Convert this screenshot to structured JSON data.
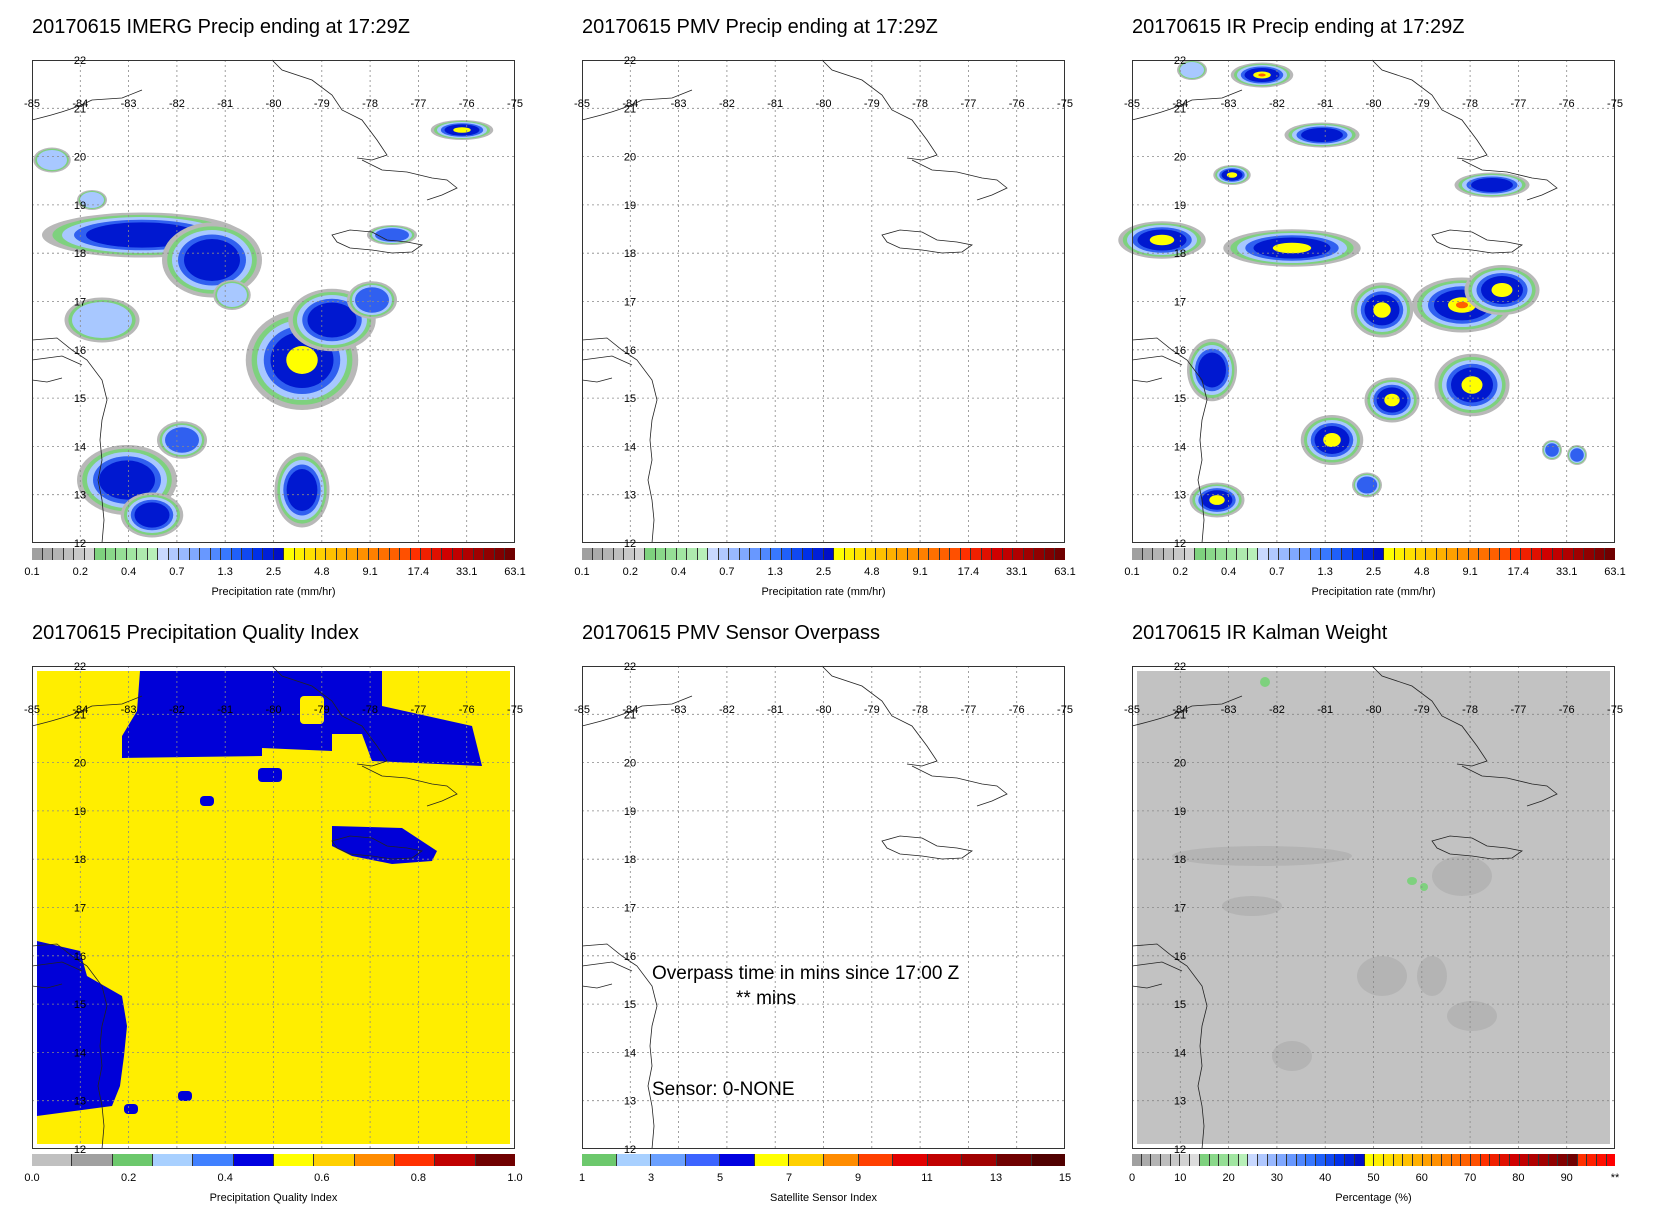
{
  "panels": [
    {
      "title": "20170615 IMERG Precip ending at 17:29Z",
      "cbar_label": "Precipitation rate (mm/hr)",
      "cbar": "precip"
    },
    {
      "title": "20170615 PMV Precip ending at 17:29Z",
      "cbar_label": "Precipitation rate (mm/hr)",
      "cbar": "precip"
    },
    {
      "title": "20170615 IR Precip ending at 17:29Z",
      "cbar_label": "Precipitation rate (mm/hr)",
      "cbar": "precip"
    },
    {
      "title": "20170615 Precipitation Quality Index",
      "cbar_label": "Precipitation Quality Index",
      "cbar": "pqi"
    },
    {
      "title": "20170615 PMV Sensor Overpass",
      "cbar_label": "Satellite Sensor Index",
      "cbar": "sensor"
    },
    {
      "title": "20170615 IR Kalman Weight",
      "cbar_label": "Percentage (%)",
      "cbar": "kalman"
    }
  ],
  "map_axes": {
    "lon_ticks": [
      "-85",
      "-84",
      "-83",
      "-82",
      "-81",
      "-80",
      "-79",
      "-78",
      "-77",
      "-76",
      "-75"
    ],
    "lat_ticks": [
      "22",
      "21",
      "20",
      "19",
      "18",
      "17",
      "16",
      "15",
      "14",
      "13",
      "12"
    ]
  },
  "colorbars": {
    "precip": {
      "ticks": [
        "0.1",
        "0.2",
        "0.4",
        "0.7",
        "1.3",
        "2.5",
        "4.8",
        "9.1",
        "17.4",
        "33.1",
        "63.1"
      ],
      "colors": [
        "#a0a0a0",
        "#aaaaaa",
        "#b4b4b4",
        "#bebebe",
        "#c8c8c8",
        "#d2d2d2",
        "#7ed17e",
        "#8ad88a",
        "#96df96",
        "#a2e6a2",
        "#aee9ae",
        "#b8f0b8",
        "#c8d8ff",
        "#b0c8ff",
        "#98b8ff",
        "#80a8ff",
        "#6898ff",
        "#5088ff",
        "#3878ff",
        "#2060f8",
        "#1048f0",
        "#0030e8",
        "#0020d8",
        "#0010c8",
        "#ffff00",
        "#fff000",
        "#ffe000",
        "#ffd000",
        "#ffc000",
        "#ffb000",
        "#ffa000",
        "#ff9000",
        "#ff8000",
        "#ff7000",
        "#ff6000",
        "#ff5000",
        "#ff3000",
        "#f02000",
        "#e01000",
        "#d00000",
        "#c00000",
        "#b00000",
        "#a00000",
        "#900000",
        "#800000",
        "#700000"
      ]
    },
    "pqi": {
      "ticks": [
        "0.0",
        "0.2",
        "0.4",
        "0.6",
        "0.8",
        "1.0"
      ],
      "colors": [
        "#c0c0c0",
        "#a0a0a0",
        "#6cc86c",
        "#a8d0ff",
        "#4080ff",
        "#0000e0",
        "#ffff00",
        "#ffd000",
        "#ff8c00",
        "#ff3000",
        "#c00000",
        "#700000"
      ]
    },
    "sensor": {
      "ticks": [
        "1",
        "3",
        "5",
        "7",
        "9",
        "11",
        "13",
        "15"
      ],
      "colors": [
        "#6cc86c",
        "#a8d0ff",
        "#6aa0ff",
        "#3c64ff",
        "#0000e0",
        "#ffff00",
        "#ffd000",
        "#ff8c00",
        "#ff4000",
        "#e00000",
        "#c00000",
        "#a00000",
        "#700000",
        "#500000"
      ]
    },
    "kalman": {
      "ticks": [
        "0",
        "10",
        "20",
        "30",
        "40",
        "50",
        "60",
        "70",
        "80",
        "90",
        "**"
      ],
      "colors": [
        "#a0a0a0",
        "#aaaaaa",
        "#b4b4b4",
        "#bebebe",
        "#c8c8c8",
        "#d2d2d2",
        "#dcdcdc",
        "#7ed17e",
        "#8ad88a",
        "#96df96",
        "#a2e6a2",
        "#b8f0b8",
        "#c8d8ff",
        "#b0c8ff",
        "#98b8ff",
        "#80a8ff",
        "#6898ff",
        "#5088ff",
        "#3878ff",
        "#2060f8",
        "#1048f0",
        "#0030e8",
        "#0020d8",
        "#0010c8",
        "#ffff00",
        "#fff000",
        "#ffe000",
        "#ffd000",
        "#ffc000",
        "#ffb000",
        "#ffa000",
        "#ff9000",
        "#ff8000",
        "#ff7000",
        "#ff6000",
        "#ff5000",
        "#ff3000",
        "#f02000",
        "#e01000",
        "#d00000",
        "#c00000",
        "#b00000",
        "#a00000",
        "#900000",
        "#800000",
        "#700000",
        "#ff3000",
        "#ff2000",
        "#ff1000",
        "#ff0000"
      ]
    }
  },
  "overpass": {
    "line1": "Overpass time in mins since 17:00 Z",
    "line2": "** mins",
    "line3": "Sensor:   0-NONE"
  }
}
